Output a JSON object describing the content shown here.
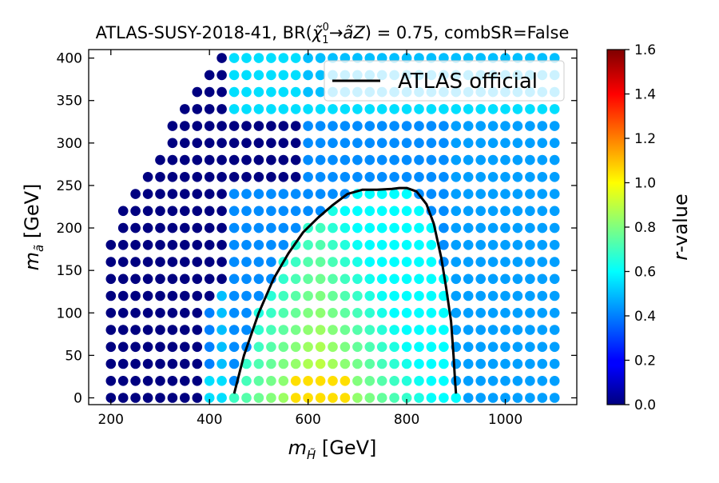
{
  "chart_data": {
    "type": "scatter",
    "title": "ATLAS-SUSY-2018-41, BR($\\tilde{\\chi}_1^0 \\rightarrow \\tilde{a} Z)=0.75$, combSR=False",
    "title_parts": {
      "prefix": "ATLAS-SUSY-2018-41, BR(",
      "chi": "χ̃",
      "chi_sub": "1",
      "chi_sup": "0",
      "arrow": "→",
      "a": "ã",
      "z": "Z",
      "suffix": ") = 0.75, combSR=False"
    },
    "xlabel": "m_H̃ [GeV]",
    "xlabel_parts": {
      "m": "m",
      "sub": "H̃",
      "unit": " [GeV]"
    },
    "ylabel": "m_ã [GeV]",
    "ylabel_parts": {
      "m": "m",
      "sub": "ã",
      "unit": " [GeV]"
    },
    "xlim": [
      155,
      1145
    ],
    "ylim": [
      -8,
      410
    ],
    "x_ticks": [
      200,
      400,
      600,
      800,
      1000
    ],
    "y_ticks": [
      0,
      50,
      100,
      150,
      200,
      250,
      300,
      350,
      400
    ],
    "grid": false,
    "colormap": "jet",
    "colorbar": {
      "label": "r-value",
      "label_parts": {
        "r": "r",
        "rest": "-value"
      },
      "range": [
        0.0,
        1.6
      ],
      "ticks": [
        "0.0",
        "0.2",
        "0.4",
        "0.6",
        "0.8",
        "1.0",
        "1.2",
        "1.4",
        "1.6"
      ]
    },
    "legend": {
      "placement": "top-right",
      "entries": [
        {
          "label": "ATLAS official",
          "color": "#000000"
        }
      ]
    },
    "grid_points": {
      "x_start": 200,
      "x_step": 25,
      "y_start": 0,
      "y_step": 20,
      "rows": [
        {
          "y": 0,
          "x_min": 200,
          "x_max": 1100
        },
        {
          "y": 20,
          "x_min": 200,
          "x_max": 1100
        },
        {
          "y": 40,
          "x_min": 200,
          "x_max": 1100
        },
        {
          "y": 60,
          "x_min": 200,
          "x_max": 1100
        },
        {
          "y": 80,
          "x_min": 200,
          "x_max": 1100
        },
        {
          "y": 100,
          "x_min": 200,
          "x_max": 1100
        },
        {
          "y": 120,
          "x_min": 200,
          "x_max": 1100
        },
        {
          "y": 140,
          "x_min": 200,
          "x_max": 1100
        },
        {
          "y": 160,
          "x_min": 200,
          "x_max": 1100
        },
        {
          "y": 180,
          "x_min": 200,
          "x_max": 1100
        },
        {
          "y": 200,
          "x_min": 225,
          "x_max": 1100
        },
        {
          "y": 220,
          "x_min": 225,
          "x_max": 1100
        },
        {
          "y": 240,
          "x_min": 250,
          "x_max": 1100
        },
        {
          "y": 260,
          "x_min": 275,
          "x_max": 1100
        },
        {
          "y": 280,
          "x_min": 300,
          "x_max": 1100
        },
        {
          "y": 300,
          "x_min": 325,
          "x_max": 1100
        },
        {
          "y": 320,
          "x_min": 325,
          "x_max": 1100
        },
        {
          "y": 340,
          "x_min": 350,
          "x_max": 1100
        },
        {
          "y": 360,
          "x_min": 375,
          "x_max": 1100
        },
        {
          "y": 380,
          "x_min": 400,
          "x_max": 1100
        },
        {
          "y": 400,
          "x_min": 425,
          "x_max": 1100
        }
      ],
      "r_model": {
        "bins": [
          {
            "range": "x <= 375",
            "r": 0.0
          },
          {
            "range": "400-600 outside region",
            "r": 0.3
          },
          {
            "range": "inside official contour",
            "r": 0.85
          },
          {
            "range": "y >= 340 high x",
            "r": 0.5
          }
        ]
      }
    },
    "official_contour": {
      "label": "ATLAS official",
      "x": [
        450,
        470,
        500,
        530,
        560,
        590,
        620,
        650,
        680,
        710,
        740,
        770,
        785,
        800,
        820,
        840,
        855,
        870,
        880,
        890,
        895,
        898,
        900
      ],
      "y": [
        5,
        50,
        100,
        140,
        170,
        195,
        212,
        227,
        240,
        245,
        245,
        246,
        247,
        247,
        243,
        228,
        205,
        165,
        130,
        90,
        50,
        20,
        5
      ]
    }
  }
}
